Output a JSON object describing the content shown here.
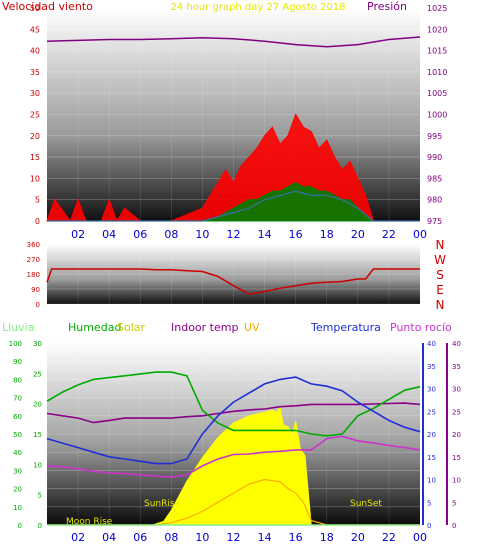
{
  "colors": {
    "wind": "#ff0000",
    "gust_dark": "#008000",
    "wind_avg": "#3a6ea5",
    "pressure": "#800080",
    "bearing": "#cc0000",
    "humidity": "#00aa00",
    "indoor_temp": "#8b008b",
    "uv": "#ffaa00",
    "temperature": "#1f2fd6",
    "dewpoint": "#cc33cc",
    "solar": "#ffff00",
    "rain": "#88ee88",
    "hour_label": "#0000cc"
  },
  "chart_data": [
    {
      "type": "line",
      "panel": "wind_pressure",
      "title": "24 hour graph day  27 Agosto 2018",
      "left_label": "Velocidad viento",
      "right_label": "Presión",
      "x_ticks": [
        "02",
        "04",
        "06",
        "08",
        "10",
        "12",
        "14",
        "16",
        "18",
        "20",
        "22",
        "00"
      ],
      "y_left_ticks": [
        "0",
        "5",
        "10",
        "15",
        "20",
        "25",
        "30",
        "35",
        "40",
        "45",
        "50"
      ],
      "y_right_ticks": [
        "975",
        "980",
        "985",
        "990",
        "995",
        "1000",
        "1005",
        "1010",
        "1015",
        "1020",
        "1025"
      ],
      "ylim_left": [
        0,
        50
      ],
      "ylim_right": [
        975,
        1025
      ],
      "grid": true,
      "series": [
        {
          "name": "Presión",
          "axis": "right",
          "x": [
            0,
            2,
            4,
            6,
            8,
            10,
            12,
            14,
            16,
            18,
            20,
            22,
            24
          ],
          "values": [
            1017.2,
            1017.4,
            1017.6,
            1017.6,
            1017.8,
            1018.0,
            1017.8,
            1017.2,
            1016.4,
            1015.9,
            1016.4,
            1017.6,
            1018.2
          ]
        },
        {
          "name": "Velocidad viento",
          "axis": "left",
          "x": [
            0,
            0.5,
            1.5,
            2.0,
            2.5,
            3.5,
            4.0,
            4.5,
            5.0,
            6.0,
            8.0,
            10.0,
            10.5,
            11.0,
            11.5,
            12.0,
            12.5,
            13.0,
            13.5,
            14.0,
            14.5,
            15.0,
            15.5,
            16.0,
            16.5,
            17.0,
            17.5,
            18.0,
            18.5,
            19.0,
            19.5,
            20.0,
            20.5,
            21,
            24
          ],
          "values": [
            0,
            5,
            0,
            5,
            0,
            0,
            5,
            0,
            3,
            0,
            0,
            3,
            6,
            9,
            12,
            9,
            13,
            15,
            17,
            20,
            22,
            18,
            20,
            25,
            22,
            21,
            17,
            19,
            15,
            12,
            14,
            10,
            6,
            0,
            0
          ]
        },
        {
          "name": "Racha media",
          "axis": "left",
          "x": [
            0,
            10,
            11,
            12,
            12.5,
            13,
            13.5,
            14,
            14.5,
            15,
            15.5,
            16,
            16.5,
            17,
            17.5,
            18,
            18.5,
            19,
            19.5,
            20,
            21,
            24
          ],
          "values": [
            0,
            0,
            1,
            3,
            4,
            5,
            5,
            6,
            7,
            7,
            8,
            9,
            8,
            8,
            7,
            7,
            6,
            5,
            5,
            3,
            0,
            0
          ]
        },
        {
          "name": "Velocidad media",
          "axis": "left",
          "x": [
            0,
            10,
            11,
            12,
            13,
            14,
            15,
            16,
            17,
            18,
            19,
            20,
            21,
            24
          ],
          "values": [
            0,
            0,
            1,
            2,
            3,
            5,
            6,
            7,
            6,
            6,
            5,
            3,
            0,
            0
          ]
        }
      ]
    },
    {
      "type": "line",
      "panel": "wind_direction",
      "y_left_ticks": [
        "360",
        "270",
        "180",
        "90",
        "0"
      ],
      "ylim_left": [
        0,
        360
      ],
      "right_labels": [
        "N",
        "W",
        "S",
        "E",
        "N"
      ],
      "grid": true,
      "series": [
        {
          "name": "Dirección viento",
          "x": [
            0,
            0.3,
            1,
            2,
            4,
            6,
            7,
            8,
            9,
            10,
            11,
            12,
            12.5,
            13,
            14,
            15,
            16,
            17,
            18,
            19,
            20,
            20.5,
            21,
            22,
            23,
            24
          ],
          "values": [
            130,
            210,
            210,
            210,
            210,
            210,
            205,
            205,
            200,
            195,
            165,
            110,
            85,
            60,
            75,
            95,
            110,
            125,
            130,
            135,
            150,
            150,
            210,
            210,
            210,
            210
          ]
        }
      ]
    },
    {
      "type": "line",
      "panel": "temperature_humidity",
      "legend": [
        "Lluvia",
        "Humedad",
        "Solar",
        "Indoor temp",
        "UV",
        "Temperatura",
        "Punto rocío"
      ],
      "x_ticks": [
        "02",
        "04",
        "06",
        "08",
        "10",
        "12",
        "14",
        "16",
        "18",
        "20",
        "22",
        "00"
      ],
      "y_hum_ticks": [
        "0",
        "10",
        "20",
        "30",
        "40",
        "50",
        "60",
        "70",
        "80",
        "90",
        "100"
      ],
      "y_rain_ticks": [
        "0",
        "5",
        "10",
        "15",
        "20",
        "25",
        "30"
      ],
      "y_right_ticks": [
        "0",
        "5",
        "10",
        "15",
        "20",
        "25",
        "30",
        "35",
        "40"
      ],
      "ylim_humidity": [
        0,
        100
      ],
      "ylim_temp": [
        0,
        40
      ],
      "annotations": [
        "SunRise",
        "SunSet",
        "Moon Rise"
      ],
      "grid": true,
      "series": [
        {
          "name": "Humedad",
          "axis": "humidity",
          "x": [
            0,
            1,
            2,
            3,
            4,
            5,
            6,
            7,
            8,
            9,
            10,
            11,
            12,
            13,
            14,
            15,
            16,
            17,
            18,
            19,
            20,
            21,
            22,
            23,
            24
          ],
          "values": [
            68,
            73,
            77,
            80,
            81,
            82,
            83,
            84,
            84,
            82,
            63,
            56,
            52,
            52,
            52,
            52,
            52,
            50,
            49,
            50,
            60,
            64,
            69,
            74,
            76
          ]
        },
        {
          "name": "Indoor temp",
          "axis": "temp",
          "x": [
            0,
            1,
            2,
            3,
            4,
            5,
            6,
            7,
            8,
            9,
            10,
            11,
            12,
            13,
            14,
            15,
            16,
            17,
            18,
            19,
            20,
            21,
            22,
            23,
            24
          ],
          "values": [
            24.5,
            24.0,
            23.5,
            22.5,
            23.0,
            23.5,
            23.5,
            23.5,
            23.5,
            23.8,
            24.0,
            24.5,
            25.0,
            25.3,
            25.5,
            26.0,
            26.2,
            26.5,
            26.5,
            26.5,
            26.5,
            26.6,
            26.7,
            26.8,
            26.5
          ]
        },
        {
          "name": "Temperatura",
          "axis": "temp",
          "x": [
            0,
            1,
            2,
            3,
            4,
            5,
            6,
            7,
            8,
            9,
            10,
            11,
            12,
            13,
            14,
            15,
            16,
            17,
            18,
            19,
            20,
            21,
            22,
            23,
            24
          ],
          "values": [
            19.0,
            18.0,
            17.0,
            16.0,
            15.0,
            14.5,
            14.0,
            13.5,
            13.5,
            14.5,
            20.0,
            24.0,
            27.0,
            29.0,
            31.0,
            32.0,
            32.5,
            31.0,
            30.5,
            29.5,
            27.0,
            25.0,
            23.0,
            21.5,
            20.5
          ]
        },
        {
          "name": "Punto rocío",
          "axis": "temp",
          "x": [
            0,
            1,
            2,
            3,
            4,
            5,
            6,
            7,
            8,
            9,
            10,
            11,
            12,
            13,
            14,
            15,
            16,
            17,
            18,
            19,
            20,
            21,
            22,
            23,
            24
          ],
          "values": [
            13.0,
            12.8,
            12.3,
            11.8,
            11.4,
            11.3,
            11.0,
            10.8,
            10.5,
            11.0,
            13.0,
            14.5,
            15.5,
            15.6,
            16.0,
            16.2,
            16.5,
            16.5,
            19.0,
            19.5,
            18.5,
            18.0,
            17.5,
            17.0,
            16.5
          ]
        },
        {
          "name": "Solar",
          "axis": "humidity",
          "x": [
            0,
            6.8,
            7.5,
            8.0,
            9.0,
            10.0,
            11.0,
            12.0,
            13.0,
            14.0,
            14.5,
            14.8,
            15.0,
            15.2,
            15.5,
            15.8,
            16.0,
            16.3,
            16.6,
            17.0,
            24
          ],
          "values": [
            0,
            0,
            2,
            8,
            24,
            37,
            48,
            56,
            60,
            62,
            63,
            62,
            65,
            55,
            54,
            50,
            57,
            42,
            38,
            0,
            0
          ]
        },
        {
          "name": "UV",
          "axis": "temp",
          "x": [
            0,
            7,
            8,
            9,
            10,
            11,
            12,
            13,
            14,
            15,
            15.5,
            16,
            16.5,
            17,
            18,
            24
          ],
          "values": [
            0,
            0,
            0.5,
            1.5,
            3,
            5,
            7,
            9,
            10,
            9.5,
            8,
            7,
            5,
            1,
            0,
            0
          ]
        },
        {
          "name": "Lluvia",
          "axis": "rain",
          "x": [
            0,
            24
          ],
          "values": [
            0,
            0
          ]
        }
      ]
    }
  ]
}
